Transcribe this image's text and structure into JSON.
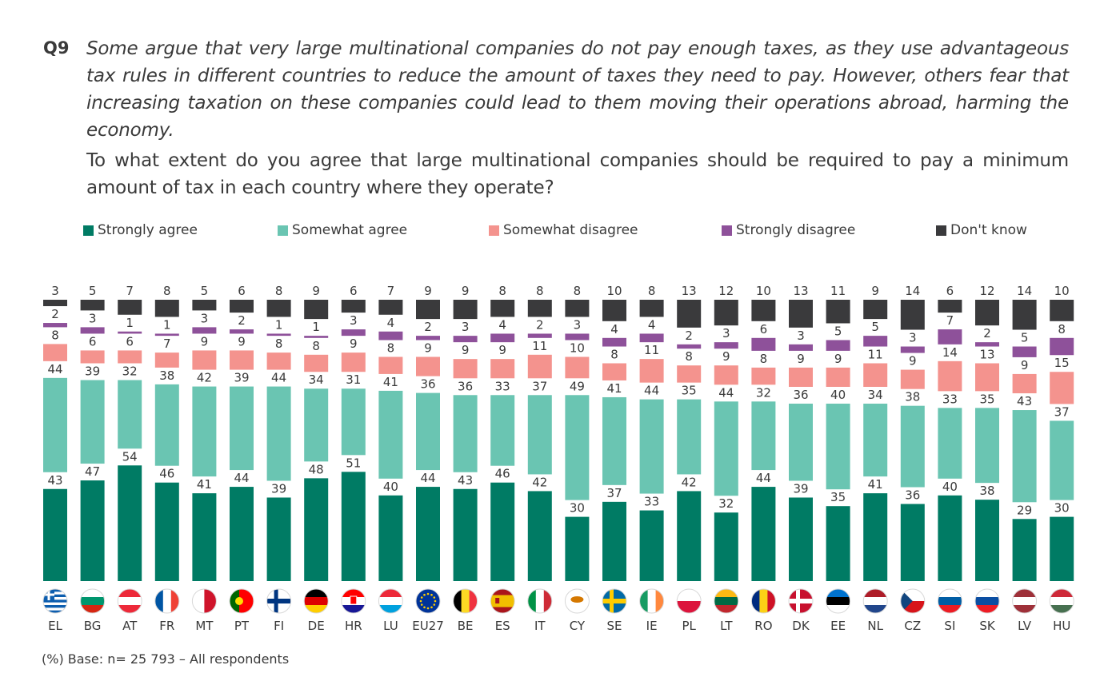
{
  "question": {
    "number": "Q9",
    "intro": "Some argue that very large multinational companies do not pay enough taxes, as they use advantageous tax rules in different countries to reduce the amount of taxes they need to pay. However, others fear that increasing taxation on these companies could lead to them moving their operations abroad, harming the economy.",
    "text": "To what extent do you agree that large multinational companies should be required to pay a minimum amount of tax in each country where they operate?"
  },
  "footnote": "(%) Base: n= 25 793 – All respondents",
  "chart_data": {
    "type": "bar",
    "stacked": true,
    "title": "Q9 To what extent do you agree that large multinational companies should be required to pay a minimum amount of tax in each country where they operate?",
    "xlabel": "",
    "ylabel": "%",
    "ylim": [
      0,
      100
    ],
    "legend_position": "top",
    "categories": [
      "EL",
      "BG",
      "AT",
      "FR",
      "MT",
      "PT",
      "FI",
      "DE",
      "HR",
      "LU",
      "EU27",
      "BE",
      "ES",
      "IT",
      "CY",
      "SE",
      "IE",
      "PL",
      "LT",
      "RO",
      "DK",
      "EE",
      "NL",
      "CZ",
      "SI",
      "SK",
      "LV",
      "HU"
    ],
    "series": [
      {
        "name": "Strongly agree",
        "color": "#007B64",
        "values": [
          43,
          47,
          54,
          46,
          41,
          44,
          39,
          48,
          51,
          40,
          44,
          43,
          46,
          42,
          30,
          37,
          33,
          42,
          32,
          44,
          39,
          35,
          41,
          36,
          40,
          38,
          29,
          30
        ]
      },
      {
        "name": "Somewhat agree",
        "color": "#6AC5B2",
        "values": [
          44,
          39,
          32,
          38,
          42,
          39,
          44,
          34,
          31,
          41,
          36,
          36,
          33,
          37,
          49,
          41,
          44,
          35,
          44,
          32,
          36,
          40,
          34,
          38,
          33,
          35,
          43,
          37
        ]
      },
      {
        "name": "Somewhat disagree",
        "color": "#F4938E",
        "values": [
          8,
          6,
          6,
          7,
          9,
          9,
          8,
          8,
          9,
          8,
          9,
          9,
          9,
          11,
          10,
          8,
          11,
          8,
          9,
          8,
          9,
          9,
          11,
          9,
          14,
          13,
          9,
          15
        ]
      },
      {
        "name": "Strongly disagree",
        "color": "#8E519A",
        "values": [
          2,
          3,
          1,
          1,
          3,
          2,
          1,
          1,
          3,
          4,
          2,
          3,
          4,
          2,
          3,
          4,
          4,
          2,
          3,
          6,
          3,
          5,
          5,
          3,
          7,
          2,
          5,
          8
        ]
      },
      {
        "name": "Don't know",
        "color": "#3A3A3C",
        "values": [
          3,
          5,
          7,
          8,
          5,
          6,
          8,
          9,
          6,
          7,
          9,
          9,
          8,
          8,
          8,
          10,
          8,
          13,
          12,
          10,
          13,
          11,
          9,
          14,
          6,
          12,
          14,
          10
        ]
      }
    ],
    "flags": {
      "EL": "greece-flag",
      "BG": "bulgaria-flag",
      "AT": "austria-flag",
      "FR": "france-flag",
      "MT": "malta-flag",
      "PT": "portugal-flag",
      "FI": "finland-flag",
      "DE": "germany-flag",
      "HR": "croatia-flag",
      "LU": "luxembourg-flag",
      "EU27": "eu-flag",
      "BE": "belgium-flag",
      "ES": "spain-flag",
      "IT": "italy-flag",
      "CY": "cyprus-flag",
      "SE": "sweden-flag",
      "IE": "ireland-flag",
      "PL": "poland-flag",
      "LT": "lithuania-flag",
      "RO": "romania-flag",
      "DK": "denmark-flag",
      "EE": "estonia-flag",
      "NL": "netherlands-flag",
      "CZ": "czechia-flag",
      "SI": "slovenia-flag",
      "SK": "slovakia-flag",
      "LV": "latvia-flag",
      "HU": "hungary-flag"
    }
  }
}
